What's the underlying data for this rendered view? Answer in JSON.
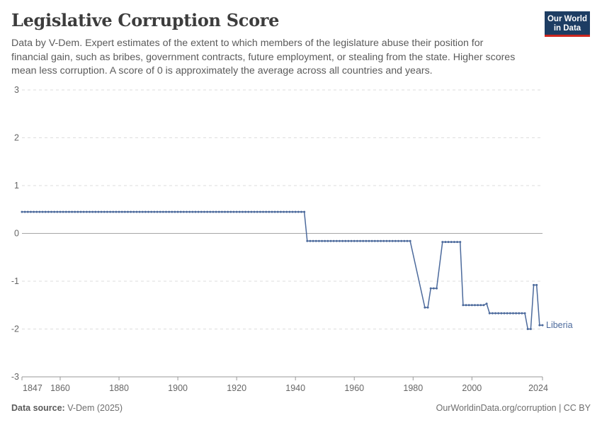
{
  "header": {
    "title": "Legislative Corruption Score",
    "subtitle": "Data by V-Dem. Expert estimates of the extent to which members of the legislature abuse their position for financial gain, such as bribes, government contracts, future employment, or stealing from the state. Higher scores mean less corruption. A score of 0 is approximately the average across all countries and years."
  },
  "logo": {
    "line1": "Our World",
    "line2": "in Data",
    "bg_color": "#1d3d63",
    "accent_color": "#ce261e"
  },
  "footer": {
    "source_label": "Data source:",
    "source_value": "V-Dem (2025)",
    "link": "OurWorldinData.org/corruption | CC BY"
  },
  "chart_data": {
    "type": "line",
    "title": "Legislative Corruption Score",
    "xlabel": "",
    "ylabel": "",
    "xlim": [
      1847,
      2024
    ],
    "ylim": [
      -3,
      3
    ],
    "x_ticks": [
      1847,
      1860,
      1880,
      1900,
      1920,
      1940,
      1960,
      1980,
      2000,
      2024
    ],
    "y_ticks": [
      3,
      2,
      1,
      0,
      -1,
      -2,
      -3
    ],
    "y_tick_labels": [
      "3",
      "2",
      "1",
      "0",
      "-1",
      "-2",
      "-3"
    ],
    "grid": "horizontal dashed",
    "line_color": "#4c6a9c",
    "series": [
      {
        "name": "Liberia",
        "segments": [
          {
            "from": 1847,
            "to": 1943,
            "value": 0.45
          },
          {
            "from": 1944,
            "to": 1979,
            "value": -0.16
          },
          {
            "from": 1984,
            "to": 1985,
            "value": -1.55
          },
          {
            "from": 1986,
            "to": 1988,
            "value": -1.15
          },
          {
            "from": 1990,
            "to": 1996,
            "value": -0.18
          },
          {
            "from": 1997,
            "to": 2004,
            "value": -1.5
          },
          {
            "from": 2005,
            "to": 2005,
            "value": -1.47
          },
          {
            "from": 2006,
            "to": 2018,
            "value": -1.67
          },
          {
            "from": 2019,
            "to": 2020,
            "value": -2.0
          },
          {
            "from": 2021,
            "to": 2022,
            "value": -1.08
          },
          {
            "from": 2023,
            "to": 2024,
            "value": -1.92
          }
        ]
      }
    ]
  }
}
